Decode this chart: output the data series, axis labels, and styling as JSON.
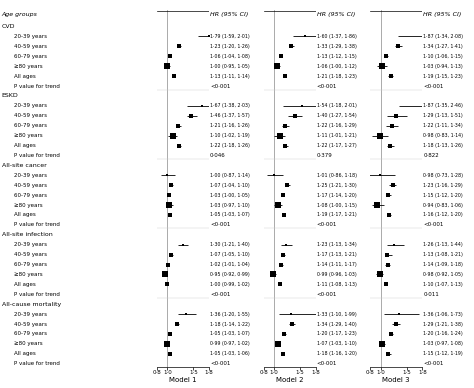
{
  "col_header": [
    "Age groups",
    "HR (95% CI)",
    "HR (95% CI)",
    "HR (95% CI)"
  ],
  "model_labels": [
    "Model 1",
    "Model 2",
    "Model 3"
  ],
  "sections": [
    {
      "name": "CVD",
      "rows": [
        {
          "label": "20-39 years",
          "m1": [
            1.79,
            1.59,
            2.01
          ],
          "m2": [
            1.6,
            1.37,
            1.86
          ],
          "m3": [
            1.87,
            1.34,
            2.08
          ]
        },
        {
          "label": "40-59 years",
          "m1": [
            1.23,
            1.2,
            1.26
          ],
          "m2": [
            1.33,
            1.29,
            1.38
          ],
          "m3": [
            1.34,
            1.27,
            1.41
          ]
        },
        {
          "label": "60-79 years",
          "m1": [
            1.06,
            1.04,
            1.08
          ],
          "m2": [
            1.13,
            1.12,
            1.15
          ],
          "m3": [
            1.1,
            1.06,
            1.15
          ]
        },
        {
          "label": "≥80 years",
          "m1": [
            1.0,
            0.95,
            1.05
          ],
          "m2": [
            1.06,
            1.0,
            1.12
          ],
          "m3": [
            1.03,
            0.94,
            1.13
          ]
        },
        {
          "label": "All ages",
          "m1": [
            1.13,
            1.11,
            1.14
          ],
          "m2": [
            1.21,
            1.18,
            1.23
          ],
          "m3": [
            1.19,
            1.15,
            1.23
          ]
        },
        {
          "label": "P value for trend",
          "m1": null,
          "m2": null,
          "m3": null,
          "pval": [
            "<0·001",
            "<0·001",
            "<0·001"
          ]
        }
      ]
    },
    {
      "name": "ESKD",
      "rows": [
        {
          "label": "20-39 years",
          "m1": [
            1.67,
            1.38,
            2.03
          ],
          "m2": [
            1.54,
            1.18,
            2.01
          ],
          "m3": [
            1.87,
            1.35,
            2.46
          ]
        },
        {
          "label": "40-59 years",
          "m1": [
            1.46,
            1.37,
            1.57
          ],
          "m2": [
            1.4,
            1.27,
            1.54
          ],
          "m3": [
            1.29,
            1.13,
            1.51
          ]
        },
        {
          "label": "60-79 years",
          "m1": [
            1.21,
            1.16,
            1.26
          ],
          "m2": [
            1.22,
            1.16,
            1.29
          ],
          "m3": [
            1.22,
            1.11,
            1.34
          ]
        },
        {
          "label": "≥80 years",
          "m1": [
            1.1,
            1.02,
            1.19
          ],
          "m2": [
            1.11,
            1.01,
            1.21
          ],
          "m3": [
            0.98,
            0.83,
            1.14
          ]
        },
        {
          "label": "All ages",
          "m1": [
            1.22,
            1.18,
            1.26
          ],
          "m2": [
            1.22,
            1.17,
            1.27
          ],
          "m3": [
            1.18,
            1.13,
            1.26
          ]
        },
        {
          "label": "P value for trend",
          "m1": null,
          "m2": null,
          "m3": null,
          "pval": [
            "0·046",
            "0·379",
            "0·822"
          ]
        }
      ]
    },
    {
      "name": "All-site cancer",
      "rows": [
        {
          "label": "20-39 years",
          "m1": [
            1.0,
            0.87,
            1.14
          ],
          "m2": [
            1.01,
            0.86,
            1.18
          ],
          "m3": [
            0.98,
            0.73,
            1.28
          ]
        },
        {
          "label": "40-59 years",
          "m1": [
            1.07,
            1.04,
            1.1
          ],
          "m2": [
            1.25,
            1.21,
            1.3
          ],
          "m3": [
            1.23,
            1.16,
            1.29
          ]
        },
        {
          "label": "60-79 years",
          "m1": [
            1.03,
            1.0,
            1.05
          ],
          "m2": [
            1.17,
            1.14,
            1.2
          ],
          "m3": [
            1.15,
            1.12,
            1.2
          ]
        },
        {
          "label": "≥80 years",
          "m1": [
            1.03,
            0.97,
            1.1
          ],
          "m2": [
            1.08,
            1.0,
            1.15
          ],
          "m3": [
            0.94,
            0.83,
            1.06
          ]
        },
        {
          "label": "All ages",
          "m1": [
            1.05,
            1.03,
            1.07
          ],
          "m2": [
            1.19,
            1.17,
            1.21
          ],
          "m3": [
            1.16,
            1.12,
            1.2
          ]
        },
        {
          "label": "P value for trend",
          "m1": null,
          "m2": null,
          "m3": null,
          "pval": [
            "<0·001",
            "<0·001",
            "<0·001"
          ]
        }
      ]
    },
    {
      "name": "All-site infection",
      "rows": [
        {
          "label": "20-39 years",
          "m1": [
            1.3,
            1.21,
            1.4
          ],
          "m2": [
            1.23,
            1.13,
            1.34
          ],
          "m3": [
            1.26,
            1.13,
            1.44
          ]
        },
        {
          "label": "40-59 years",
          "m1": [
            1.07,
            1.05,
            1.1
          ],
          "m2": [
            1.17,
            1.13,
            1.21
          ],
          "m3": [
            1.13,
            1.08,
            1.21
          ]
        },
        {
          "label": "60-79 years",
          "m1": [
            1.02,
            1.01,
            1.04
          ],
          "m2": [
            1.14,
            1.11,
            1.17
          ],
          "m3": [
            1.14,
            1.09,
            1.18
          ]
        },
        {
          "label": "≥80 years",
          "m1": [
            0.95,
            0.92,
            0.99
          ],
          "m2": [
            0.99,
            0.96,
            1.03
          ],
          "m3": [
            0.98,
            0.92,
            1.05
          ]
        },
        {
          "label": "All ages",
          "m1": [
            1.0,
            0.99,
            1.02
          ],
          "m2": [
            1.11,
            1.08,
            1.13
          ],
          "m3": [
            1.1,
            1.07,
            1.13
          ]
        },
        {
          "label": "P value for trend",
          "m1": null,
          "m2": null,
          "m3": null,
          "pval": [
            "<0·001",
            "<0·001",
            "0·011"
          ]
        }
      ]
    },
    {
      "name": "All-cause mortality",
      "rows": [
        {
          "label": "20-39 years",
          "m1": [
            1.36,
            1.2,
            1.55
          ],
          "m2": [
            1.33,
            1.1,
            1.99
          ],
          "m3": [
            1.36,
            1.06,
            1.73
          ]
        },
        {
          "label": "40-59 years",
          "m1": [
            1.18,
            1.14,
            1.22
          ],
          "m2": [
            1.34,
            1.29,
            1.4
          ],
          "m3": [
            1.29,
            1.21,
            1.38
          ]
        },
        {
          "label": "60-79 years",
          "m1": [
            1.05,
            1.03,
            1.07
          ],
          "m2": [
            1.2,
            1.17,
            1.23
          ],
          "m3": [
            1.2,
            1.16,
            1.24
          ]
        },
        {
          "label": "≥80 years",
          "m1": [
            0.99,
            0.97,
            1.02
          ],
          "m2": [
            1.07,
            1.03,
            1.1
          ],
          "m3": [
            1.03,
            0.97,
            1.08
          ]
        },
        {
          "label": "All ages",
          "m1": [
            1.05,
            1.03,
            1.06
          ],
          "m2": [
            1.18,
            1.16,
            1.2
          ],
          "m3": [
            1.15,
            1.12,
            1.19
          ]
        },
        {
          "label": "P value for trend",
          "m1": null,
          "m2": null,
          "m3": null,
          "pval": [
            "<0·001",
            "<0·001",
            "<0·001"
          ]
        }
      ]
    }
  ],
  "xlim": [
    0.8,
    1.8
  ],
  "xticks": [
    0.8,
    1.0,
    1.5,
    1.8
  ],
  "xticklabels": [
    "0·8",
    "1·0",
    "1·5",
    "1·8"
  ],
  "vline": 1.0,
  "bg_color": "#ffffff",
  "text_color": "#000000",
  "marker_sizes": {
    "20-39 years": 2.0,
    "40-59 years": 2.5,
    "60-79 years": 3.5,
    "≥80 years": 5.0,
    "All ages": 3.0
  }
}
